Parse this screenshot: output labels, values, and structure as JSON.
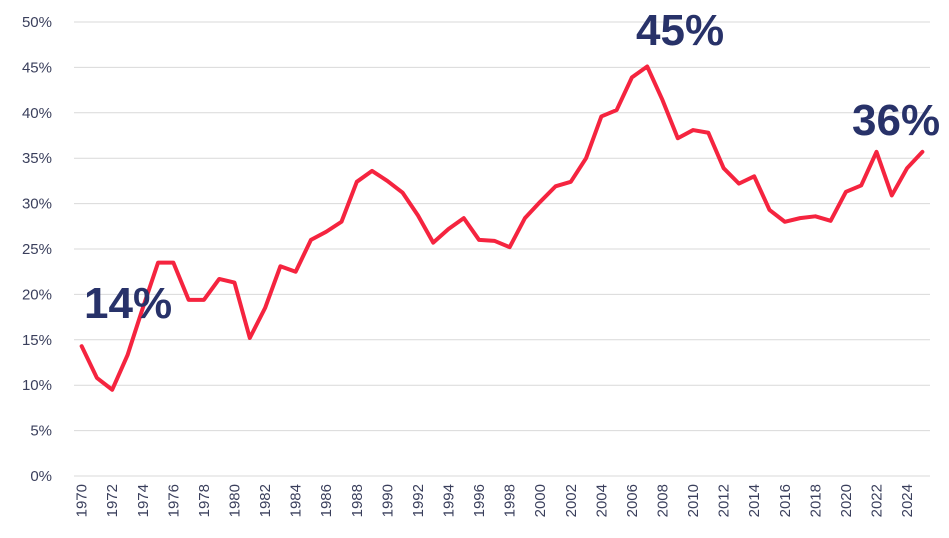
{
  "chart_data": {
    "type": "line",
    "categories": [
      "1970",
      null,
      "1972",
      null,
      "1974",
      null,
      "1976",
      null,
      "1978",
      null,
      "1980",
      null,
      "1982",
      null,
      "1984",
      null,
      "1986",
      null,
      "1988",
      null,
      "1990",
      null,
      "1992",
      null,
      "1994",
      null,
      "1996",
      null,
      "1998",
      null,
      "2000",
      null,
      "2002",
      null,
      "2004",
      null,
      "2006",
      null,
      "2008",
      null,
      "2010",
      null,
      "2012",
      null,
      "2014",
      null,
      "2016",
      null,
      "2018",
      null,
      "2020",
      null,
      "2022",
      null,
      "2024",
      null
    ],
    "series": [
      {
        "color": "#f5243f",
        "values": [
          14.3,
          10.8,
          9.5,
          13.3,
          18.5,
          23.5,
          23.5,
          19.4,
          19.4,
          21.7,
          21.3,
          15.2,
          18.5,
          23.1,
          22.5,
          26.0,
          26.9,
          28.0,
          32.4,
          33.6,
          32.5,
          31.2,
          28.7,
          25.7,
          27.2,
          28.4,
          26.0,
          25.9,
          25.2,
          28.4,
          30.2,
          31.9,
          32.4,
          35.0,
          39.6,
          40.3,
          43.9,
          45.1,
          41.4,
          37.2,
          38.1,
          37.8,
          33.9,
          32.2,
          33.0,
          29.3,
          28.0,
          28.4,
          28.6,
          28.1,
          31.3,
          32.0,
          35.7,
          30.9,
          33.9,
          35.7
        ]
      }
    ],
    "ylim": [
      0,
      50
    ],
    "yticks": [
      {
        "value": 0,
        "label": "0%"
      },
      {
        "value": 5,
        "label": "5%"
      },
      {
        "value": 10,
        "label": "10%"
      },
      {
        "value": 15,
        "label": "15%"
      },
      {
        "value": 20,
        "label": "20%"
      },
      {
        "value": 25,
        "label": "25%"
      },
      {
        "value": 30,
        "label": "30%"
      },
      {
        "value": 35,
        "label": "35%"
      },
      {
        "value": 40,
        "label": "40%"
      },
      {
        "value": 45,
        "label": "45%"
      },
      {
        "value": 50,
        "label": "50%"
      }
    ],
    "grid": true,
    "annotations": [
      "14%",
      "45%",
      "36%"
    ]
  }
}
